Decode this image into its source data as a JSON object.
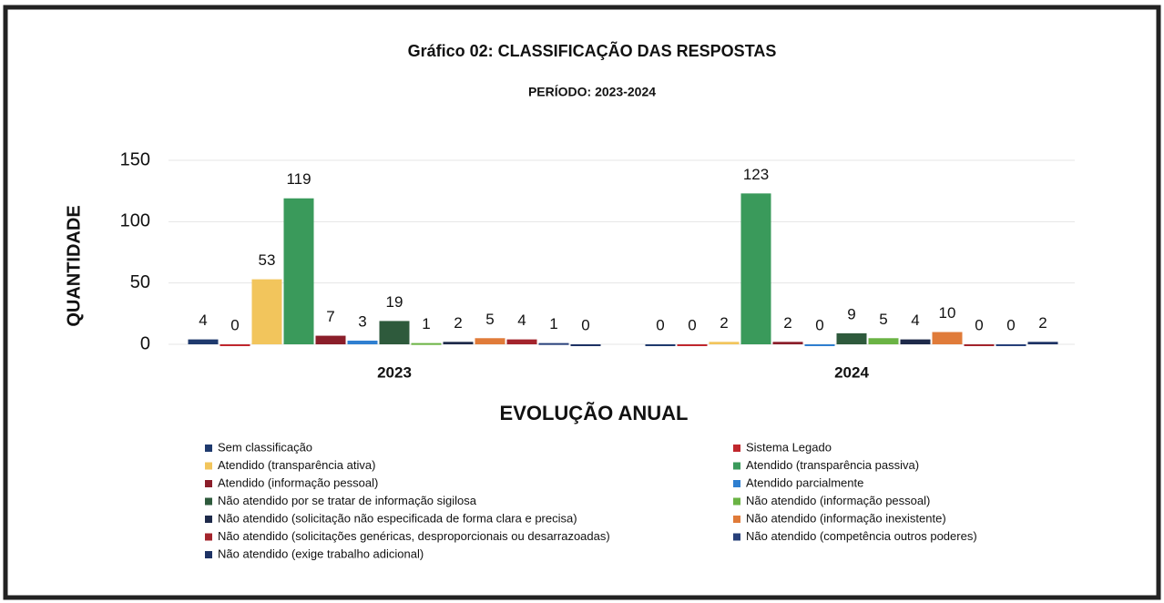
{
  "chart_data": {
    "type": "bar",
    "title": "Gráfico 02: CLASSIFICAÇÃO DAS RESPOSTAS",
    "subtitle": "PERÍODO: 2023-2024",
    "y_label": "QUANTIDADE",
    "x_label": "EVOLUÇÃO ANUAL",
    "categories": [
      "2023",
      "2024"
    ],
    "ylim": [
      0,
      150
    ],
    "yticks": [
      0,
      50,
      100,
      150
    ],
    "grid": true,
    "series": [
      {
        "name": "Sem classificação",
        "color": "#1f3a6e",
        "values": [
          4,
          0
        ]
      },
      {
        "name": "Sistema Legado",
        "color": "#c0272d",
        "values": [
          0,
          0
        ]
      },
      {
        "name": "Atendido (transparência ativa)",
        "color": "#f2c55c",
        "values": [
          53,
          2
        ]
      },
      {
        "name": "Atendido (transparência passiva)",
        "color": "#3a9a5b",
        "values": [
          119,
          123
        ]
      },
      {
        "name": "Atendido (informação pessoal)",
        "color": "#8b1e2a",
        "values": [
          7,
          2
        ]
      },
      {
        "name": "Atendido parcialmente",
        "color": "#2f7fd0",
        "values": [
          3,
          0
        ]
      },
      {
        "name": "Não atendido por se tratar de informação sigilosa",
        "color": "#2e5a3c",
        "values": [
          19,
          9
        ]
      },
      {
        "name": "Não atendido (informação pessoal)",
        "color": "#6ab344",
        "values": [
          1,
          5
        ]
      },
      {
        "name": "Não atendido (solicitação não especificada de forma clara e precisa)",
        "color": "#1e2a4a",
        "values": [
          2,
          4
        ]
      },
      {
        "name": "Não atendido (informação inexistente)",
        "color": "#e07b39",
        "values": [
          5,
          10
        ]
      },
      {
        "name": "Não atendido (solicitações genéricas, desproporcionais ou desarrazoadas)",
        "color": "#a3242c",
        "values": [
          4,
          0
        ]
      },
      {
        "name": "Não atendido (competência outros poderes)",
        "color": "#27407a",
        "values": [
          1,
          0
        ]
      },
      {
        "name": "Não atendido (exige trabalho adicional)",
        "color": "#1d3264",
        "values": [
          0,
          2
        ]
      }
    ]
  }
}
